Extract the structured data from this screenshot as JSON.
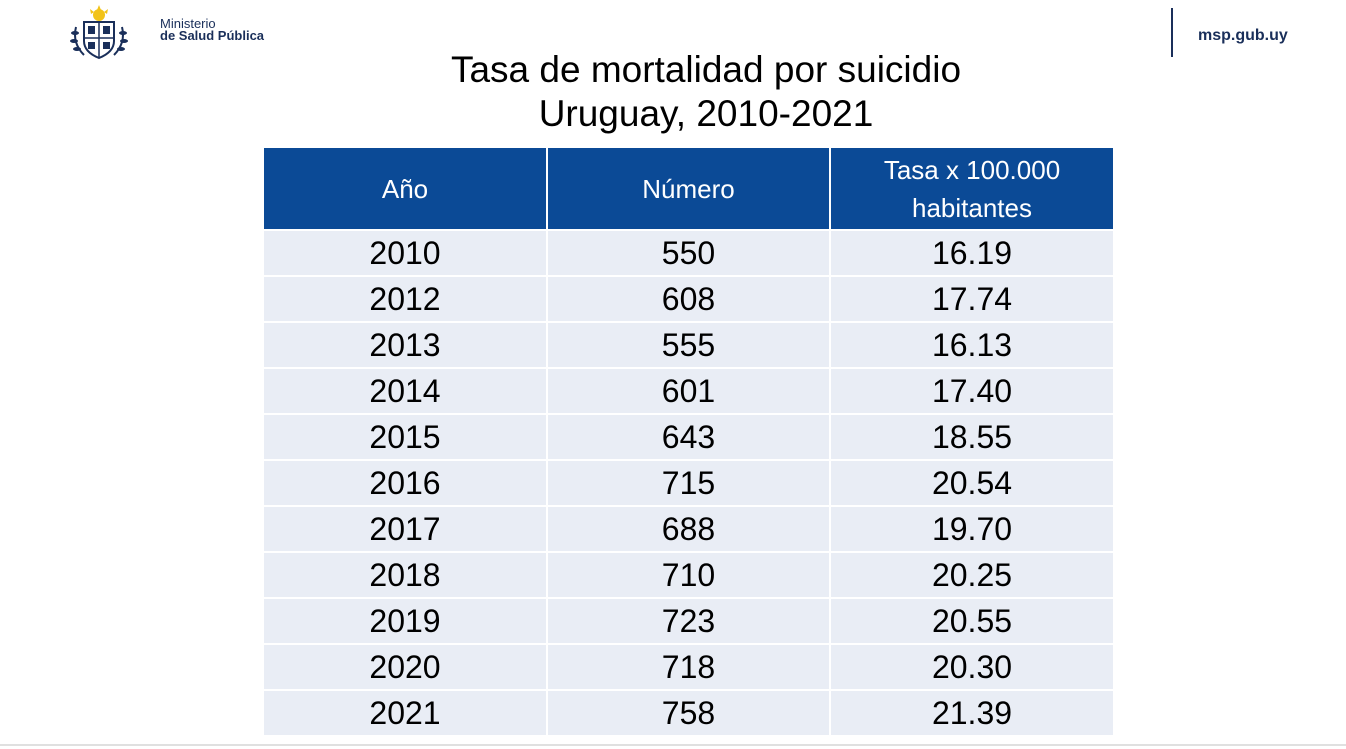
{
  "header": {
    "org_line1": "Ministerio",
    "org_line2": "de Salud Pública",
    "url": "msp.gub.uy"
  },
  "title": {
    "line1": "Tasa de mortalidad por suicidio",
    "line2": "Uruguay, 2010-2021"
  },
  "table": {
    "columns": [
      "Año",
      "Número",
      "Tasa x 100.000 habitantes"
    ],
    "rows": [
      [
        "2010",
        "550",
        "16.19"
      ],
      [
        "2012",
        "608",
        "17.74"
      ],
      [
        "2013",
        "555",
        "16.13"
      ],
      [
        "2014",
        "601",
        "17.40"
      ],
      [
        "2015",
        "643",
        "18.55"
      ],
      [
        "2016",
        "715",
        "20.54"
      ],
      [
        "2017",
        "688",
        "19.70"
      ],
      [
        "2018",
        "710",
        "20.25"
      ],
      [
        "2019",
        "723",
        "20.55"
      ],
      [
        "2020",
        "718",
        "20.30"
      ],
      [
        "2021",
        "758",
        "21.39"
      ]
    ]
  },
  "colors": {
    "header_bg": "#0b4a96",
    "row_bg": "#e9edf5",
    "brand": "#1a2f5a"
  }
}
